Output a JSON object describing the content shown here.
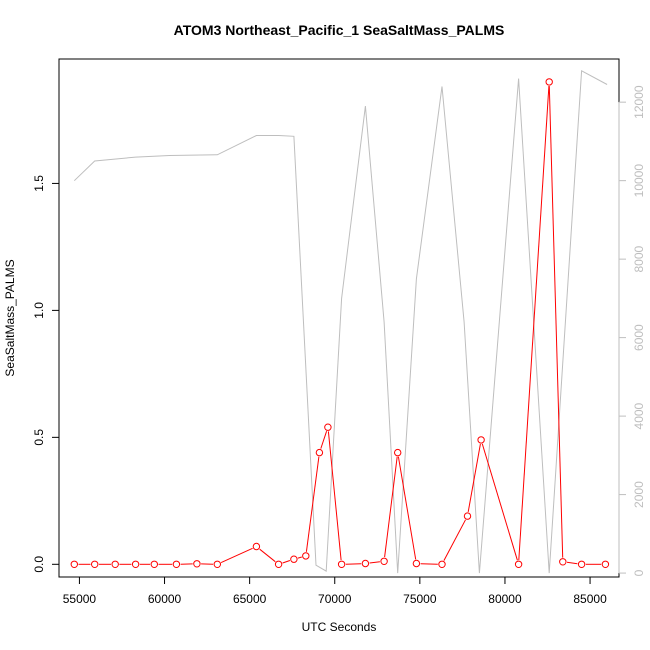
{
  "chart_data": {
    "type": "line",
    "title": "ATOM3 Northeast_Pacific_1 SeaSaltMass_PALMS",
    "xlabel": "UTC Seconds",
    "ylabel": "SeaSaltMass_PALMS",
    "xlim": [
      53800,
      86700
    ],
    "ylim": [
      -0.05,
      1.99
    ],
    "y2lim": [
      -100,
      13100
    ],
    "grid": false,
    "x_ticks": [
      55000,
      60000,
      65000,
      70000,
      75000,
      80000,
      85000
    ],
    "x_tick_labels": [
      "55000",
      "60000",
      "65000",
      "70000",
      "75000",
      "80000",
      "85000"
    ],
    "y_ticks": [
      0.0,
      0.5,
      1.0,
      1.5
    ],
    "y_tick_labels": [
      "0.0",
      "0.5",
      "1.0",
      "1.5"
    ],
    "y2_ticks": [
      0,
      2000,
      4000,
      6000,
      8000,
      10000,
      12000
    ],
    "y2_tick_labels": [
      "0",
      "2000",
      "4000",
      "6000",
      "8000",
      "10000",
      "12000"
    ],
    "colors": {
      "primary": "#ff0000",
      "secondary": "#bebebe",
      "axis": "#000000"
    },
    "series": [
      {
        "axis": "left",
        "style": "line-with-open-circles",
        "color": "#ff0000",
        "x": [
          54700,
          55900,
          57100,
          58300,
          59400,
          60700,
          61900,
          63100,
          65400,
          66700,
          67600,
          68300,
          69100,
          69600,
          70400,
          71800,
          72900,
          73700,
          74800,
          76300,
          77800,
          78600,
          80800,
          82600,
          83400,
          84500,
          85900
        ],
        "y": [
          0.0,
          0.0,
          0.0,
          0.0,
          0.0,
          0.0,
          0.002,
          0.0,
          0.07,
          0.0,
          0.02,
          0.033,
          0.44,
          0.54,
          0.0,
          0.003,
          0.012,
          0.44,
          0.003,
          0.0,
          0.19,
          0.49,
          0.0,
          1.9,
          0.01,
          0.0,
          0.0
        ]
      },
      {
        "axis": "right",
        "style": "line",
        "color": "#bebebe",
        "x": [
          54700,
          55900,
          58300,
          60300,
          63100,
          65400,
          66700,
          67600,
          68900,
          69500,
          70400,
          71800,
          72900,
          73700,
          74800,
          76300,
          77600,
          78500,
          80800,
          82600,
          84500,
          86000
        ],
        "y": [
          10000,
          10500,
          10600,
          10640,
          10660,
          11150,
          11150,
          11130,
          200,
          50,
          7000,
          11900,
          6400,
          0,
          7500,
          12400,
          6400,
          0,
          12600,
          0,
          12800,
          12450
        ]
      }
    ]
  }
}
